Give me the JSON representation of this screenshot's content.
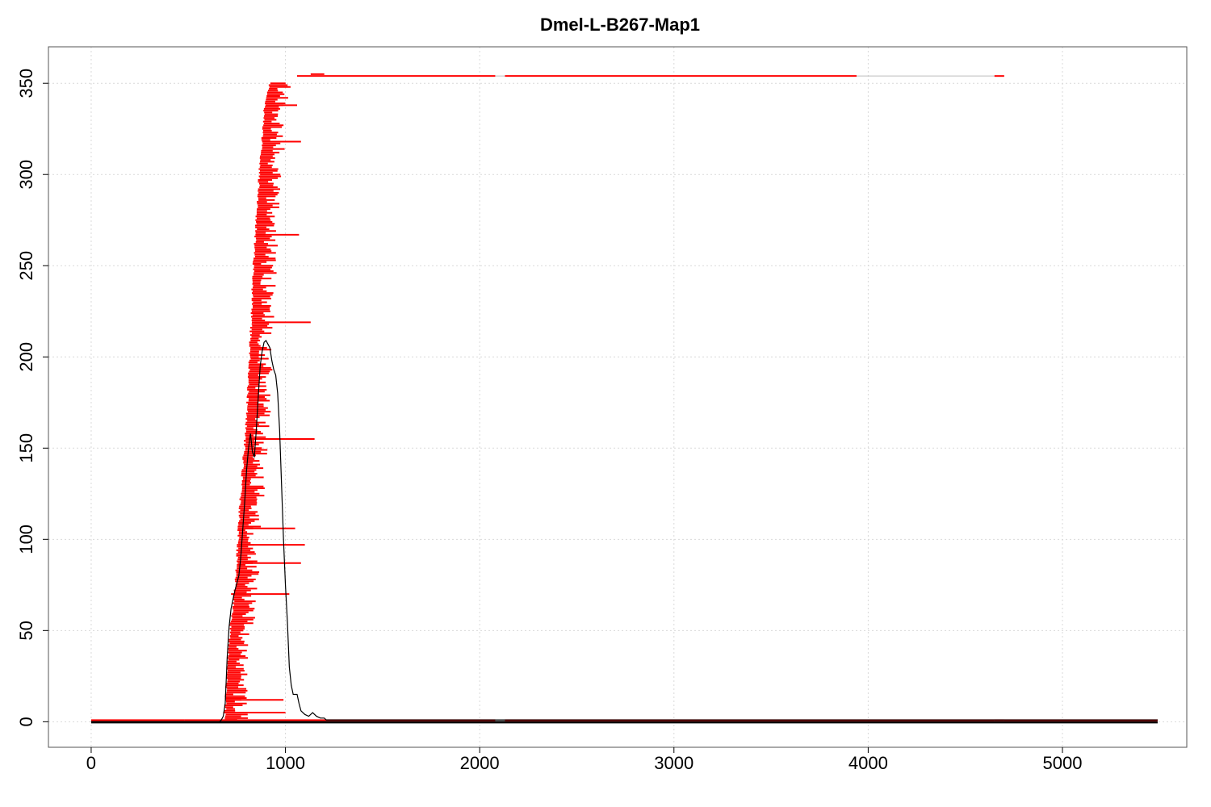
{
  "chart_data": {
    "type": "line",
    "title": "Dmel-L-B267-Map1",
    "xlabel": "",
    "ylabel": "",
    "xlim": [
      -220,
      5640
    ],
    "ylim": [
      -14,
      370
    ],
    "x_ticks": [
      0,
      1000,
      2000,
      3000,
      4000,
      5000
    ],
    "y_ticks": [
      0,
      50,
      100,
      150,
      200,
      250,
      300,
      350
    ],
    "grid": true,
    "colors": {
      "reads": "#ff0000",
      "coverage": "#000000",
      "grid": "#d9d9d9",
      "reference": "#bbbbbb"
    },
    "reference_top_line": {
      "x": [
        1060,
        4700
      ],
      "y": 354
    },
    "top_row_segments": [
      [
        1060,
        2080
      ],
      [
        2130,
        3940
      ],
      [
        4650,
        4700
      ]
    ],
    "baseline_segments": [
      [
        0,
        480
      ],
      [
        480,
        2080
      ],
      [
        2130,
        3940
      ],
      [
        3940,
        4650
      ],
      [
        4650,
        4700
      ],
      [
        4700,
        5490
      ]
    ],
    "read_pileup": {
      "row_count": 350,
      "start_profile": [
        [
          0,
          680
        ],
        [
          40,
          700
        ],
        [
          80,
          740
        ],
        [
          120,
          760
        ],
        [
          160,
          790
        ],
        [
          200,
          810
        ],
        [
          250,
          830
        ],
        [
          300,
          860
        ],
        [
          340,
          890
        ],
        [
          354,
          920
        ]
      ],
      "typical_length": [
        40,
        120
      ],
      "long_reads": [
        [
          5,
          680,
          1000
        ],
        [
          12,
          690,
          990
        ],
        [
          70,
          720,
          1020
        ],
        [
          87,
          780,
          1080
        ],
        [
          97,
          760,
          1100
        ],
        [
          106,
          780,
          1050
        ],
        [
          155,
          810,
          1150
        ],
        [
          219,
          840,
          1130
        ],
        [
          267,
          850,
          1070
        ],
        [
          318,
          880,
          1080
        ],
        [
          338,
          900,
          1060
        ]
      ]
    },
    "coverage_series": {
      "name": "",
      "points": [
        [
          0,
          0
        ],
        [
          660,
          0
        ],
        [
          670,
          1
        ],
        [
          680,
          3
        ],
        [
          690,
          10
        ],
        [
          700,
          35
        ],
        [
          710,
          52
        ],
        [
          720,
          62
        ],
        [
          740,
          72
        ],
        [
          760,
          80
        ],
        [
          770,
          90
        ],
        [
          780,
          105
        ],
        [
          790,
          120
        ],
        [
          800,
          138
        ],
        [
          810,
          150
        ],
        [
          820,
          158
        ],
        [
          830,
          148
        ],
        [
          840,
          145
        ],
        [
          850,
          160
        ],
        [
          860,
          178
        ],
        [
          870,
          195
        ],
        [
          880,
          203
        ],
        [
          890,
          208
        ],
        [
          900,
          209
        ],
        [
          910,
          207
        ],
        [
          920,
          205
        ],
        [
          930,
          198
        ],
        [
          940,
          193
        ],
        [
          950,
          190
        ],
        [
          960,
          180
        ],
        [
          970,
          160
        ],
        [
          980,
          130
        ],
        [
          990,
          100
        ],
        [
          1000,
          75
        ],
        [
          1010,
          55
        ],
        [
          1020,
          30
        ],
        [
          1030,
          20
        ],
        [
          1040,
          15
        ],
        [
          1060,
          15
        ],
        [
          1070,
          10
        ],
        [
          1080,
          6
        ],
        [
          1100,
          4
        ],
        [
          1120,
          3
        ],
        [
          1140,
          5
        ],
        [
          1160,
          3
        ],
        [
          1180,
          2
        ],
        [
          1200,
          2
        ],
        [
          1210,
          1
        ],
        [
          5490,
          1
        ]
      ]
    }
  }
}
